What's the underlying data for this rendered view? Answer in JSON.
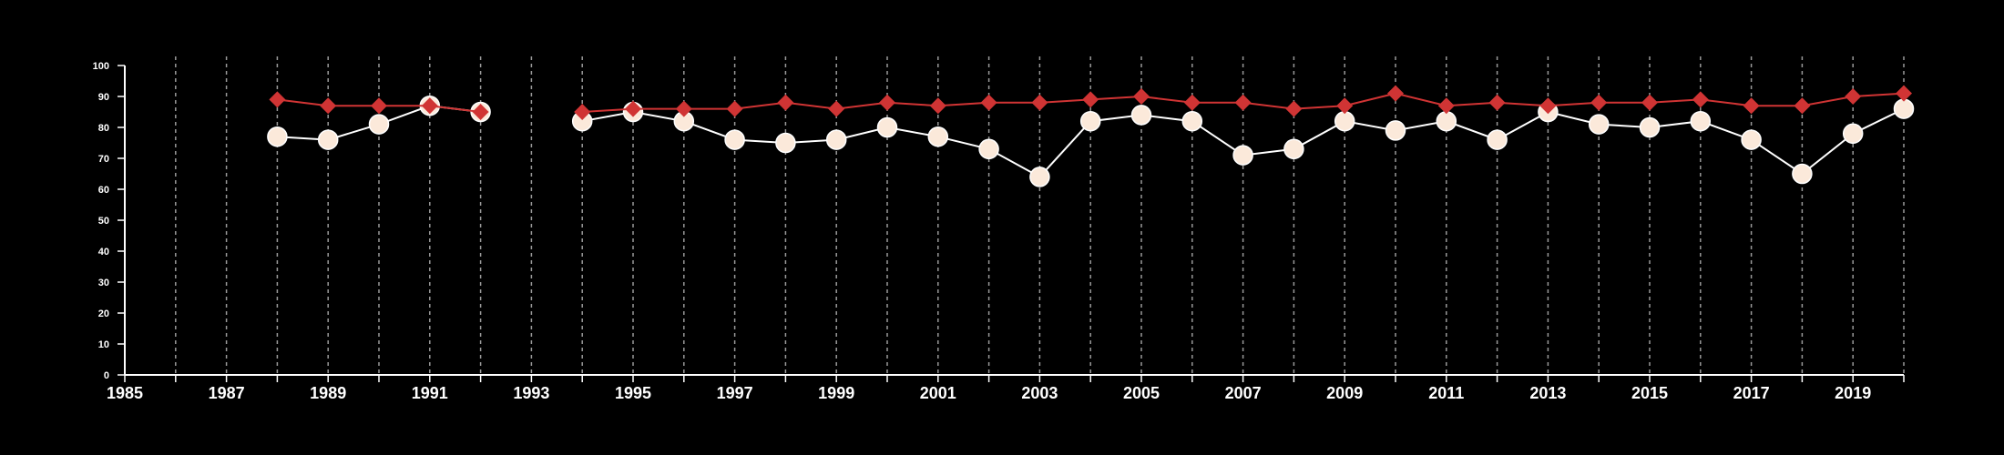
{
  "chart_data": {
    "type": "line",
    "x_range": [
      1985,
      2020
    ],
    "ylim": [
      0,
      100
    ],
    "y_ticks": [
      0,
      10,
      20,
      30,
      40,
      50,
      60,
      70,
      80,
      90,
      100
    ],
    "x_tick_labels": [
      1985,
      1987,
      1989,
      1991,
      1993,
      1995,
      1997,
      1999,
      2001,
      2003,
      2005,
      2007,
      2009,
      2011,
      2013,
      2015,
      2017,
      2019
    ],
    "grid": "vertical dashed lines at each year",
    "legend": "none",
    "series": [
      {
        "marker": "diamond",
        "color": "#d03434",
        "points": [
          [
            1988,
            89
          ],
          [
            1989,
            87
          ],
          [
            1990,
            87
          ],
          [
            1991,
            87
          ],
          [
            1992,
            85
          ],
          [
            1994,
            85
          ],
          [
            1995,
            86
          ],
          [
            1996,
            86
          ],
          [
            1997,
            86
          ],
          [
            1998,
            88
          ],
          [
            1999,
            86
          ],
          [
            2000,
            88
          ],
          [
            2001,
            87
          ],
          [
            2002,
            88
          ],
          [
            2003,
            88
          ],
          [
            2004,
            89
          ],
          [
            2005,
            90
          ],
          [
            2006,
            88
          ],
          [
            2007,
            88
          ],
          [
            2008,
            86
          ],
          [
            2009,
            87
          ],
          [
            2010,
            91
          ],
          [
            2011,
            87
          ],
          [
            2012,
            88
          ],
          [
            2013,
            87
          ],
          [
            2014,
            88
          ],
          [
            2015,
            88
          ],
          [
            2016,
            89
          ],
          [
            2017,
            87
          ],
          [
            2018,
            87
          ],
          [
            2019,
            90
          ],
          [
            2020,
            91
          ]
        ]
      },
      {
        "marker": "circle",
        "color": "#fbe9da",
        "points": [
          [
            1988,
            77
          ],
          [
            1989,
            76
          ],
          [
            1990,
            81
          ],
          [
            1991,
            87
          ],
          [
            1992,
            85
          ],
          [
            1994,
            82
          ],
          [
            1995,
            85
          ],
          [
            1996,
            82
          ],
          [
            1997,
            76
          ],
          [
            1998,
            75
          ],
          [
            1999,
            76
          ],
          [
            2000,
            80
          ],
          [
            2001,
            77
          ],
          [
            2002,
            73
          ],
          [
            2003,
            64
          ],
          [
            2004,
            82
          ],
          [
            2005,
            84
          ],
          [
            2006,
            82
          ],
          [
            2007,
            71
          ],
          [
            2008,
            73
          ],
          [
            2009,
            82
          ],
          [
            2010,
            79
          ],
          [
            2011,
            82
          ],
          [
            2012,
            76
          ],
          [
            2013,
            85
          ],
          [
            2014,
            81
          ],
          [
            2015,
            80
          ],
          [
            2016,
            82
          ],
          [
            2017,
            76
          ],
          [
            2018,
            65
          ],
          [
            2019,
            78
          ],
          [
            2020,
            86
          ]
        ]
      }
    ]
  }
}
